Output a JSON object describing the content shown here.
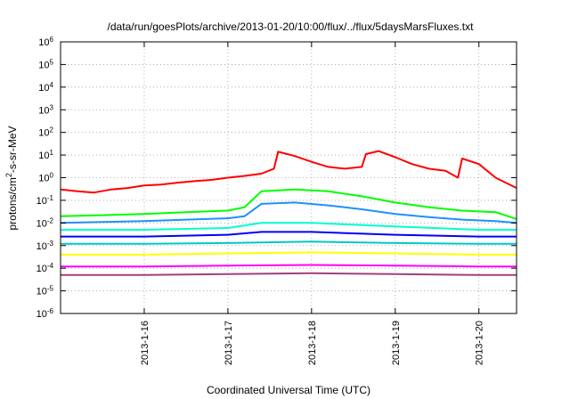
{
  "chart_data": {
    "type": "line",
    "title": "/data/run/goesPlots/archive/2013-01-20/10:00/flux/../flux/5daysMarsFluxes.txt",
    "xlabel": "Coordinated Universal Time (UTC)",
    "ylabel_parts": [
      "protons/cm",
      "2",
      "-s-sr-MeV"
    ],
    "y_scale": "log",
    "ylim": [
      1e-06,
      1000000.0
    ],
    "y_ticks": [
      {
        "base": "10",
        "exp": "-6",
        "value": 1e-06
      },
      {
        "base": "10",
        "exp": "-5",
        "value": 1e-05
      },
      {
        "base": "10",
        "exp": "-4",
        "value": 0.0001
      },
      {
        "base": "10",
        "exp": "-3",
        "value": 0.001
      },
      {
        "base": "10",
        "exp": "-2",
        "value": 0.01
      },
      {
        "base": "10",
        "exp": "-1",
        "value": 0.1
      },
      {
        "base": "10",
        "exp": "0",
        "value": 1
      },
      {
        "base": "10",
        "exp": "1",
        "value": 10
      },
      {
        "base": "10",
        "exp": "2",
        "value": 100
      },
      {
        "base": "10",
        "exp": "3",
        "value": 1000
      },
      {
        "base": "10",
        "exp": "4",
        "value": 10000
      },
      {
        "base": "10",
        "exp": "5",
        "value": 100000
      },
      {
        "base": "10",
        "exp": "6",
        "value": 1000000
      }
    ],
    "xlim": [
      15.0,
      20.45
    ],
    "x_ticks": [
      {
        "label": "2013-1-16",
        "value": 16
      },
      {
        "label": "2013-1-17",
        "value": 17
      },
      {
        "label": "2013-1-18",
        "value": 18
      },
      {
        "label": "2013-1-19",
        "value": 19
      },
      {
        "label": "2013-1-20",
        "value": 20
      }
    ],
    "grid": true,
    "series": [
      {
        "color": "#ff0000",
        "x": [
          15.0,
          15.2,
          15.4,
          15.6,
          15.8,
          16.0,
          16.2,
          16.4,
          16.6,
          16.8,
          17.0,
          17.2,
          17.4,
          17.55,
          17.6,
          17.8,
          18.0,
          18.2,
          18.4,
          18.6,
          18.65,
          18.8,
          19.0,
          19.2,
          19.4,
          19.6,
          19.75,
          19.8,
          20.0,
          20.2,
          20.45
        ],
        "y": [
          0.3,
          0.25,
          0.22,
          0.3,
          0.35,
          0.45,
          0.5,
          0.6,
          0.7,
          0.8,
          1.0,
          1.2,
          1.5,
          2.5,
          14,
          9,
          5,
          3,
          2.5,
          3,
          11,
          15,
          8,
          4,
          2.5,
          2,
          1,
          7,
          4,
          1,
          0.35
        ]
      },
      {
        "color": "#00ff00",
        "x": [
          15.0,
          15.5,
          16.0,
          16.5,
          17.0,
          17.2,
          17.4,
          17.8,
          18.2,
          18.6,
          19.0,
          19.4,
          19.8,
          20.2,
          20.45
        ],
        "y": [
          0.02,
          0.022,
          0.025,
          0.03,
          0.035,
          0.05,
          0.25,
          0.3,
          0.25,
          0.15,
          0.08,
          0.05,
          0.035,
          0.03,
          0.015
        ]
      },
      {
        "color": "#1e90ff",
        "x": [
          15.0,
          15.5,
          16.0,
          16.5,
          17.0,
          17.2,
          17.4,
          17.8,
          18.2,
          18.6,
          19.0,
          19.4,
          19.8,
          20.2,
          20.45
        ],
        "y": [
          0.01,
          0.011,
          0.012,
          0.014,
          0.016,
          0.02,
          0.07,
          0.08,
          0.06,
          0.04,
          0.025,
          0.018,
          0.014,
          0.012,
          0.01
        ]
      },
      {
        "color": "#00ffd0",
        "x": [
          15.0,
          16.0,
          17.0,
          17.4,
          18.0,
          19.0,
          20.0,
          20.45
        ],
        "y": [
          0.005,
          0.005,
          0.006,
          0.01,
          0.01,
          0.007,
          0.005,
          0.005
        ]
      },
      {
        "color": "#0000ff",
        "x": [
          15.0,
          16.0,
          17.0,
          17.4,
          18.0,
          19.0,
          20.0,
          20.45
        ],
        "y": [
          0.0025,
          0.0025,
          0.003,
          0.004,
          0.004,
          0.003,
          0.0025,
          0.0025
        ]
      },
      {
        "color": "#00c8c8",
        "x": [
          15.0,
          16.0,
          17.0,
          18.0,
          19.0,
          20.0,
          20.45
        ],
        "y": [
          0.0012,
          0.0012,
          0.0013,
          0.0015,
          0.0013,
          0.0012,
          0.0012
        ]
      },
      {
        "color": "#ffff00",
        "x": [
          15.0,
          16.0,
          17.0,
          18.0,
          19.0,
          20.0,
          20.45
        ],
        "y": [
          0.0004,
          0.0004,
          0.00045,
          0.0005,
          0.00045,
          0.0004,
          0.0004
        ]
      },
      {
        "color": "#ff00ff",
        "x": [
          15.0,
          16.0,
          17.0,
          18.0,
          19.0,
          20.0,
          20.45
        ],
        "y": [
          0.00012,
          0.00012,
          0.00013,
          0.00014,
          0.00013,
          0.00012,
          0.00012
        ]
      },
      {
        "color": "#a0407a",
        "x": [
          15.0,
          16.0,
          17.0,
          18.0,
          19.0,
          20.0,
          20.45
        ],
        "y": [
          5e-05,
          5e-05,
          5.5e-05,
          6e-05,
          5.5e-05,
          5e-05,
          5e-05
        ]
      }
    ]
  }
}
